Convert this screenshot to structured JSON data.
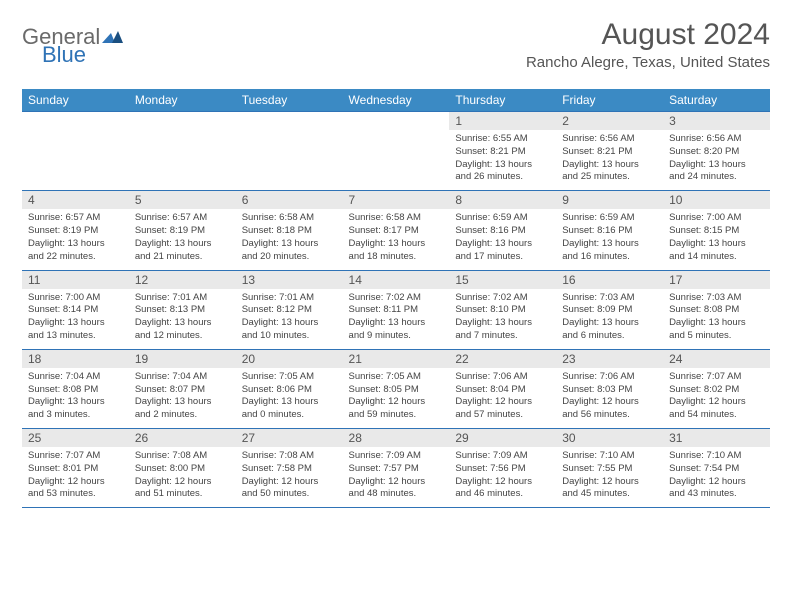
{
  "logo": {
    "word1": "General",
    "word2": "Blue"
  },
  "title": "August 2024",
  "location": "Rancho Alegre, Texas, United States",
  "colors": {
    "header_bg": "#3b8ac4",
    "header_text": "#ffffff",
    "daynum_bg": "#e9e9e9",
    "rule": "#2f73b6",
    "body_text": "#444444",
    "title_text": "#555555",
    "logo_gray": "#6a6a6a",
    "logo_blue": "#2f73b6",
    "page_bg": "#ffffff"
  },
  "day_headers": [
    "Sunday",
    "Monday",
    "Tuesday",
    "Wednesday",
    "Thursday",
    "Friday",
    "Saturday"
  ],
  "weeks": [
    [
      null,
      null,
      null,
      null,
      {
        "n": "1",
        "sr": "6:55 AM",
        "ss": "8:21 PM",
        "dl": "13 hours and 26 minutes."
      },
      {
        "n": "2",
        "sr": "6:56 AM",
        "ss": "8:21 PM",
        "dl": "13 hours and 25 minutes."
      },
      {
        "n": "3",
        "sr": "6:56 AM",
        "ss": "8:20 PM",
        "dl": "13 hours and 24 minutes."
      }
    ],
    [
      {
        "n": "4",
        "sr": "6:57 AM",
        "ss": "8:19 PM",
        "dl": "13 hours and 22 minutes."
      },
      {
        "n": "5",
        "sr": "6:57 AM",
        "ss": "8:19 PM",
        "dl": "13 hours and 21 minutes."
      },
      {
        "n": "6",
        "sr": "6:58 AM",
        "ss": "8:18 PM",
        "dl": "13 hours and 20 minutes."
      },
      {
        "n": "7",
        "sr": "6:58 AM",
        "ss": "8:17 PM",
        "dl": "13 hours and 18 minutes."
      },
      {
        "n": "8",
        "sr": "6:59 AM",
        "ss": "8:16 PM",
        "dl": "13 hours and 17 minutes."
      },
      {
        "n": "9",
        "sr": "6:59 AM",
        "ss": "8:16 PM",
        "dl": "13 hours and 16 minutes."
      },
      {
        "n": "10",
        "sr": "7:00 AM",
        "ss": "8:15 PM",
        "dl": "13 hours and 14 minutes."
      }
    ],
    [
      {
        "n": "11",
        "sr": "7:00 AM",
        "ss": "8:14 PM",
        "dl": "13 hours and 13 minutes."
      },
      {
        "n": "12",
        "sr": "7:01 AM",
        "ss": "8:13 PM",
        "dl": "13 hours and 12 minutes."
      },
      {
        "n": "13",
        "sr": "7:01 AM",
        "ss": "8:12 PM",
        "dl": "13 hours and 10 minutes."
      },
      {
        "n": "14",
        "sr": "7:02 AM",
        "ss": "8:11 PM",
        "dl": "13 hours and 9 minutes."
      },
      {
        "n": "15",
        "sr": "7:02 AM",
        "ss": "8:10 PM",
        "dl": "13 hours and 7 minutes."
      },
      {
        "n": "16",
        "sr": "7:03 AM",
        "ss": "8:09 PM",
        "dl": "13 hours and 6 minutes."
      },
      {
        "n": "17",
        "sr": "7:03 AM",
        "ss": "8:08 PM",
        "dl": "13 hours and 5 minutes."
      }
    ],
    [
      {
        "n": "18",
        "sr": "7:04 AM",
        "ss": "8:08 PM",
        "dl": "13 hours and 3 minutes."
      },
      {
        "n": "19",
        "sr": "7:04 AM",
        "ss": "8:07 PM",
        "dl": "13 hours and 2 minutes."
      },
      {
        "n": "20",
        "sr": "7:05 AM",
        "ss": "8:06 PM",
        "dl": "13 hours and 0 minutes."
      },
      {
        "n": "21",
        "sr": "7:05 AM",
        "ss": "8:05 PM",
        "dl": "12 hours and 59 minutes."
      },
      {
        "n": "22",
        "sr": "7:06 AM",
        "ss": "8:04 PM",
        "dl": "12 hours and 57 minutes."
      },
      {
        "n": "23",
        "sr": "7:06 AM",
        "ss": "8:03 PM",
        "dl": "12 hours and 56 minutes."
      },
      {
        "n": "24",
        "sr": "7:07 AM",
        "ss": "8:02 PM",
        "dl": "12 hours and 54 minutes."
      }
    ],
    [
      {
        "n": "25",
        "sr": "7:07 AM",
        "ss": "8:01 PM",
        "dl": "12 hours and 53 minutes."
      },
      {
        "n": "26",
        "sr": "7:08 AM",
        "ss": "8:00 PM",
        "dl": "12 hours and 51 minutes."
      },
      {
        "n": "27",
        "sr": "7:08 AM",
        "ss": "7:58 PM",
        "dl": "12 hours and 50 minutes."
      },
      {
        "n": "28",
        "sr": "7:09 AM",
        "ss": "7:57 PM",
        "dl": "12 hours and 48 minutes."
      },
      {
        "n": "29",
        "sr": "7:09 AM",
        "ss": "7:56 PM",
        "dl": "12 hours and 46 minutes."
      },
      {
        "n": "30",
        "sr": "7:10 AM",
        "ss": "7:55 PM",
        "dl": "12 hours and 45 minutes."
      },
      {
        "n": "31",
        "sr": "7:10 AM",
        "ss": "7:54 PM",
        "dl": "12 hours and 43 minutes."
      }
    ]
  ],
  "labels": {
    "sunrise": "Sunrise:",
    "sunset": "Sunset:",
    "daylight": "Daylight:"
  }
}
